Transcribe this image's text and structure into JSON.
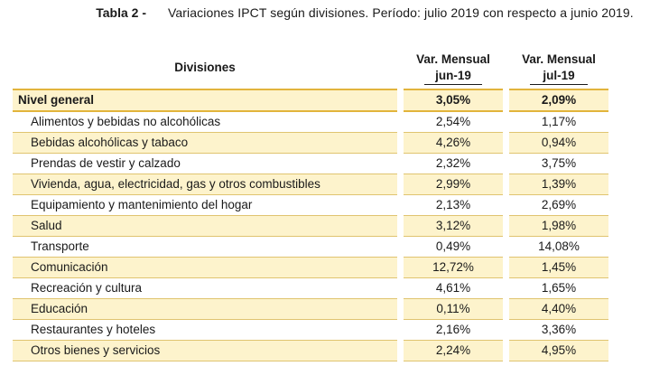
{
  "caption": {
    "label": "Tabla 2 -",
    "text": "Variaciones IPCT según divisiones. Período: julio 2019 con respecto a junio 2019."
  },
  "table": {
    "headers": {
      "divisions": "Divisiones",
      "col1_line1": "Var. Mensual",
      "col1_line2": "jun-19",
      "col2_line1": "Var. Mensual",
      "col2_line2": "jul-19"
    },
    "general": {
      "name": "Nivel general",
      "jun": "3,05%",
      "jul": "2,09%"
    },
    "rows": [
      {
        "name": "Alimentos y bebidas no alcohólicas",
        "jun": "2,54%",
        "jul": "1,17%"
      },
      {
        "name": "Bebidas alcohólicas y tabaco",
        "jun": "4,26%",
        "jul": "0,94%"
      },
      {
        "name": "Prendas de vestir y calzado",
        "jun": "2,32%",
        "jul": "3,75%"
      },
      {
        "name": "Vivienda, agua, electricidad, gas y otros combustibles",
        "jun": "2,99%",
        "jul": "1,39%"
      },
      {
        "name": "Equipamiento y mantenimiento del hogar",
        "jun": "2,13%",
        "jul": "2,69%"
      },
      {
        "name": "Salud",
        "jun": "3,12%",
        "jul": "1,98%"
      },
      {
        "name": "Transporte",
        "jun": "0,49%",
        "jul": "14,08%"
      },
      {
        "name": "Comunicación",
        "jun": "12,72%",
        "jul": "1,45%"
      },
      {
        "name": "Recreación y cultura",
        "jun": "4,61%",
        "jul": "1,65%"
      },
      {
        "name": "Educación",
        "jun": "0,11%",
        "jul": "4,40%"
      },
      {
        "name": "Restaurantes y hoteles",
        "jun": "2,16%",
        "jul": "3,36%"
      },
      {
        "name": "Otros bienes y servicios",
        "jun": "2,24%",
        "jul": "4,95%"
      }
    ]
  },
  "colors": {
    "row_highlight": "#fdf3cc",
    "rule": "#e2b43c"
  }
}
